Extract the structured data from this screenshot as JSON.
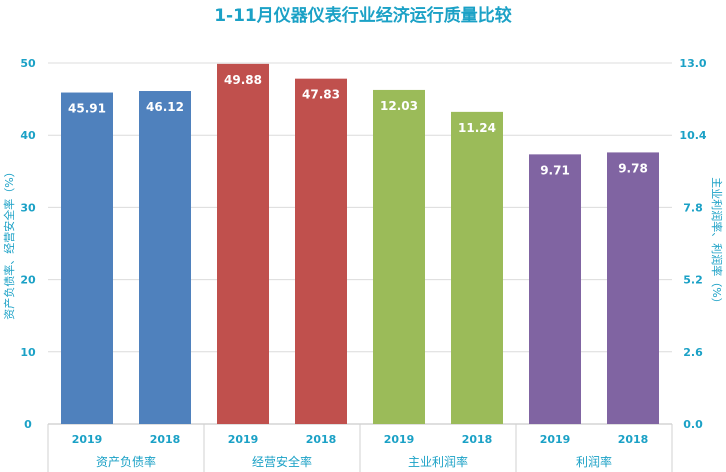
{
  "chart_data": {
    "type": "bar",
    "title": "1-11月仪器仪表行业经济运行质量比较",
    "ylabel": "资产负债率、经营安全率（%）",
    "y2label": "主业利润率、利润率（%）",
    "ylim": [
      0,
      50
    ],
    "y2lim": [
      0,
      13
    ],
    "yticks": [
      "0",
      "10",
      "20",
      "30",
      "40",
      "50"
    ],
    "y2ticks": [
      "0.0",
      "2.6",
      "5.2",
      "7.8",
      "10.4",
      "13.0"
    ],
    "grid": true,
    "groups": [
      {
        "name": "资产负债率",
        "axis": "left",
        "color": "#4f81bd",
        "bars": [
          {
            "year": "2019",
            "value": 45.91,
            "label": "45.91"
          },
          {
            "year": "2018",
            "value": 46.12,
            "label": "46.12"
          }
        ]
      },
      {
        "name": "经营安全率",
        "axis": "left",
        "color": "#c0504d",
        "bars": [
          {
            "year": "2019",
            "value": 49.88,
            "label": "49.88"
          },
          {
            "year": "2018",
            "value": 47.83,
            "label": "47.83"
          }
        ]
      },
      {
        "name": "主业利润率",
        "axis": "right",
        "color": "#9bbb59",
        "bars": [
          {
            "year": "2019",
            "value": 12.03,
            "label": "12.03"
          },
          {
            "year": "2018",
            "value": 11.24,
            "label": "11.24"
          }
        ]
      },
      {
        "name": "利润率",
        "axis": "right",
        "color": "#8064a2",
        "bars": [
          {
            "year": "2019",
            "value": 9.71,
            "label": "9.71"
          },
          {
            "year": "2018",
            "value": 9.78,
            "label": "9.78"
          }
        ]
      }
    ],
    "text_color": "#1ba1c6"
  }
}
